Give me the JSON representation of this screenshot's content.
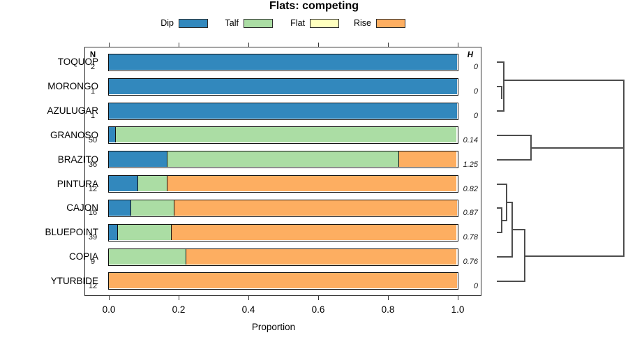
{
  "title": "Flats: competing",
  "xlabel": "Proportion",
  "columns": {
    "n": "N",
    "h": "H"
  },
  "legend": {
    "items": [
      {
        "label": "Dip",
        "color": "#3288bd"
      },
      {
        "label": "Talf",
        "color": "#abdda4"
      },
      {
        "label": "Flat",
        "color": "#ffffbf"
      },
      {
        "label": "Rise",
        "color": "#fdae61"
      }
    ]
  },
  "chart_data": {
    "type": "bar",
    "subtype": "horizontal_stacked_proportions",
    "title": "Flats: competing",
    "xlabel": "Proportion",
    "xlim": [
      0,
      1
    ],
    "x_ticks": [
      0.0,
      0.2,
      0.4,
      0.6,
      0.8,
      1.0
    ],
    "x_tick_labels": [
      "0.0",
      "0.2",
      "0.4",
      "0.6",
      "0.8",
      "1.0"
    ],
    "grid": false,
    "legend_position": "top-center",
    "categories": [
      "TOQUOP",
      "MORONGO",
      "AZULUGAR",
      "GRANOSO",
      "BRAZITO",
      "PINTURA",
      "CAJON",
      "BLUEPOINT",
      "COPIA",
      "YTURBIDE"
    ],
    "n_values": [
      "2",
      "1",
      "1",
      "50",
      "36",
      "12",
      "16",
      "39",
      "9",
      "12"
    ],
    "h_values": [
      "0",
      "0",
      "0",
      "0.14",
      "1.25",
      "0.82",
      "0.87",
      "0.78",
      "0.76",
      "0"
    ],
    "series": [
      {
        "name": "Dip",
        "color": "#3288bd",
        "values": [
          1,
          1,
          1,
          0.02,
          0.167,
          0.083,
          0.0625,
          0.026,
          0,
          0
        ]
      },
      {
        "name": "Talf",
        "color": "#abdda4",
        "values": [
          0,
          0,
          0,
          0.98,
          0.666,
          0.084,
          0.125,
          0.154,
          0.222,
          0
        ]
      },
      {
        "name": "Flat",
        "color": "#ffffbf",
        "values": [
          0,
          0,
          0,
          0,
          0,
          0,
          0,
          0,
          0,
          0
        ]
      },
      {
        "name": "Rise",
        "color": "#fdae61",
        "values": [
          0,
          0,
          0,
          0,
          0.167,
          0.833,
          0.8125,
          0.82,
          0.778,
          1
        ]
      }
    ]
  },
  "dendrogram": {
    "line_color": "#4d4d4d",
    "segments": [
      [
        712,
        89,
        721,
        89
      ],
      [
        712,
        124,
        718,
        124
      ],
      [
        712,
        159,
        721,
        159
      ],
      [
        721,
        89,
        721,
        159
      ],
      [
        718,
        124,
        718,
        141
      ],
      [
        721,
        115,
        893,
        115
      ],
      [
        712,
        194,
        760,
        194
      ],
      [
        712,
        229,
        760,
        229
      ],
      [
        760,
        194,
        760,
        229
      ],
      [
        760,
        212,
        893,
        212
      ],
      [
        712,
        264,
        725,
        264
      ],
      [
        712,
        298,
        718,
        298
      ],
      [
        712,
        333,
        718,
        333
      ],
      [
        718,
        298,
        718,
        333
      ],
      [
        718,
        316,
        725,
        316
      ],
      [
        725,
        264,
        725,
        316
      ],
      [
        725,
        290,
        733,
        290
      ],
      [
        712,
        368,
        733,
        368
      ],
      [
        733,
        290,
        733,
        368
      ],
      [
        733,
        329,
        751,
        329
      ],
      [
        712,
        403,
        751,
        403
      ],
      [
        751,
        329,
        751,
        403
      ],
      [
        751,
        367,
        893,
        367
      ],
      [
        893,
        115,
        893,
        367
      ]
    ]
  }
}
